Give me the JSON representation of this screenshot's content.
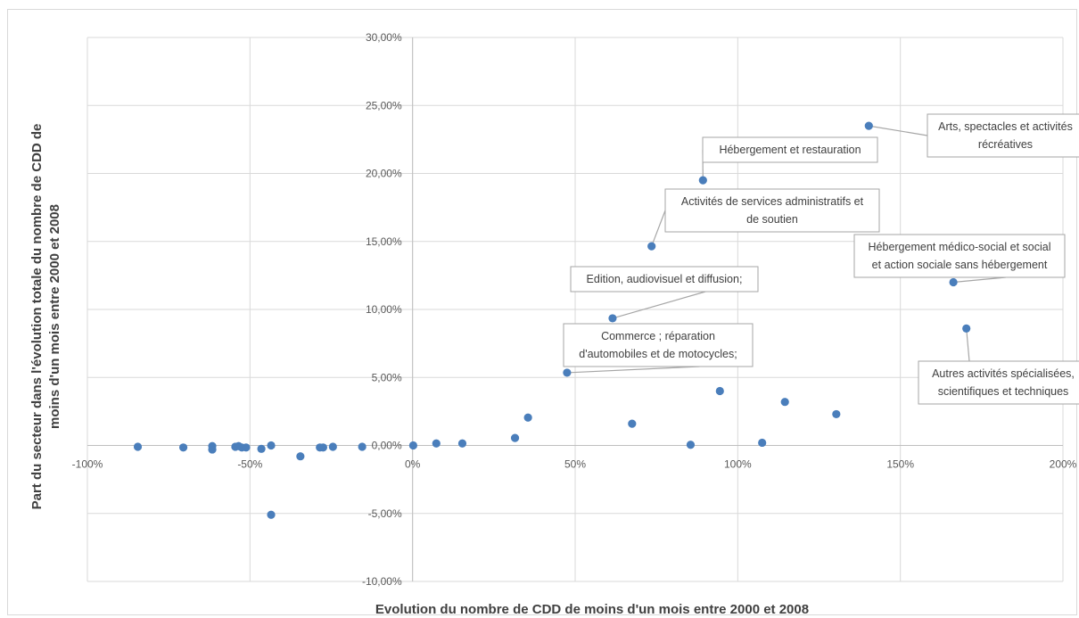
{
  "chart_data": {
    "type": "scatter",
    "title": "",
    "xlabel": "Evolution du nombre de CDD de moins d'un mois entre 2000 et 2008",
    "ylabel_lines": [
      "Part du secteur dans l'évolution totale du nombre de CDD de",
      "moins d'un mois entre 2000 et 2008"
    ],
    "xlim": [
      -100,
      200
    ],
    "ylim": [
      -10,
      30
    ],
    "grid": true,
    "marker_color": "#4a7ebb",
    "x_ticks": [
      {
        "value": -100,
        "label": "-100%"
      },
      {
        "value": -50,
        "label": "-50%"
      },
      {
        "value": 0,
        "label": "0%"
      },
      {
        "value": 50,
        "label": "50%"
      },
      {
        "value": 100,
        "label": "100%"
      },
      {
        "value": 150,
        "label": "150%"
      },
      {
        "value": 200,
        "label": "200%"
      }
    ],
    "y_ticks": [
      {
        "value": 30,
        "label": "30,00%"
      },
      {
        "value": 25,
        "label": "25,00%"
      },
      {
        "value": 20,
        "label": "20,00%"
      },
      {
        "value": 15,
        "label": "15,00%"
      },
      {
        "value": 10,
        "label": "10,00%"
      },
      {
        "value": 5,
        "label": "5,00%"
      },
      {
        "value": 0,
        "label": "0,00%"
      },
      {
        "value": -5,
        "label": "-5,00%"
      },
      {
        "value": -10,
        "label": "-10,00%"
      }
    ],
    "points": [
      {
        "x": -84.5,
        "y": -0.1
      },
      {
        "x": -70.5,
        "y": -0.15
      },
      {
        "x": -61.6,
        "y": -0.05
      },
      {
        "x": -61.6,
        "y": -0.3
      },
      {
        "x": -54.5,
        "y": -0.1
      },
      {
        "x": -53.5,
        "y": -0.05
      },
      {
        "x": -52.5,
        "y": -0.15
      },
      {
        "x": -51.2,
        "y": -0.15
      },
      {
        "x": -46.5,
        "y": -0.25
      },
      {
        "x": -43.5,
        "y": 0.0
      },
      {
        "x": -43.5,
        "y": -5.1
      },
      {
        "x": -34.5,
        "y": -0.8
      },
      {
        "x": -28.5,
        "y": -0.15
      },
      {
        "x": -27.5,
        "y": -0.15
      },
      {
        "x": -24.5,
        "y": -0.1
      },
      {
        "x": -15.5,
        "y": -0.1
      },
      {
        "x": 0.2,
        "y": 0.0
      },
      {
        "x": 7.3,
        "y": 0.15
      },
      {
        "x": 15.3,
        "y": 0.15
      },
      {
        "x": 31.5,
        "y": 0.55
      },
      {
        "x": 35.5,
        "y": 2.05
      },
      {
        "x": 47.5,
        "y": 5.35
      },
      {
        "x": 61.5,
        "y": 9.35
      },
      {
        "x": 67.5,
        "y": 1.6
      },
      {
        "x": 73.5,
        "y": 14.65
      },
      {
        "x": 85.5,
        "y": 0.05
      },
      {
        "x": 89.3,
        "y": 19.5
      },
      {
        "x": 94.5,
        "y": 4.0
      },
      {
        "x": 107.5,
        "y": 0.2
      },
      {
        "x": 114.5,
        "y": 3.2
      },
      {
        "x": 130.3,
        "y": 2.3
      },
      {
        "x": 140.3,
        "y": 23.5
      },
      {
        "x": 166.3,
        "y": 12.0
      },
      {
        "x": 170.3,
        "y": 8.6
      }
    ],
    "annotations": [
      {
        "lines": [
          "Arts, spectacles et activités",
          "récréatives"
        ],
        "x": 140.3,
        "y": 23.5
      },
      {
        "lines": [
          "Hébergement et restauration"
        ],
        "x": 89.3,
        "y": 19.5
      },
      {
        "lines": [
          "Activités de services administratifs et",
          "de soutien"
        ],
        "x": 73.5,
        "y": 14.65
      },
      {
        "lines": [
          "Hébergement médico-social et social",
          "et action sociale sans hébergement"
        ],
        "x": 166.3,
        "y": 12.0
      },
      {
        "lines": [
          "Edition, audiovisuel et diffusion;"
        ],
        "x": 61.5,
        "y": 9.35
      },
      {
        "lines": [
          "Commerce ; réparation",
          "d'automobiles et de motocycles;"
        ],
        "x": 47.5,
        "y": 5.35
      },
      {
        "lines": [
          "Autres activités spécialisées,",
          "scientifiques et techniques"
        ],
        "x": 170.3,
        "y": 8.6
      }
    ]
  }
}
